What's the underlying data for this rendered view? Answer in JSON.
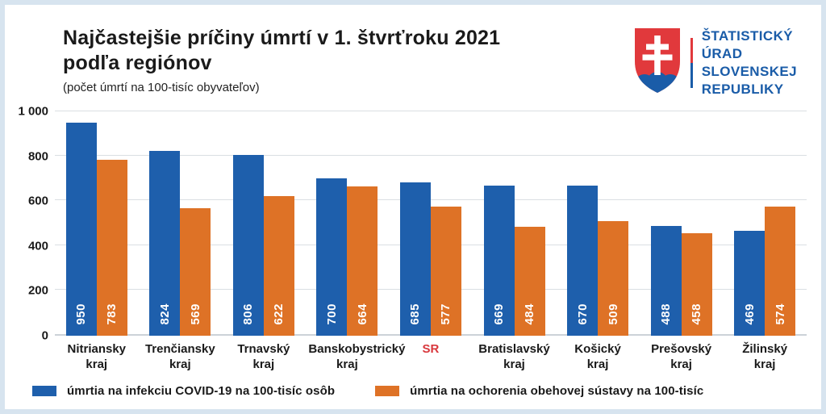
{
  "frame": {
    "border_color": "#d7e4ef",
    "background": "#ffffff"
  },
  "header": {
    "title_line1": "Najčastejšie príčiny úmrtí v 1. štvrťroku 2021",
    "title_line2": "podľa regiónov",
    "subtitle": "(počet úmrtí na 100-tisíc obyvateľov)"
  },
  "logo": {
    "lines": [
      "ŠTATISTICKÝ",
      "ÚRAD",
      "SLOVENSKEJ",
      "REPUBLIKY"
    ],
    "text_color": "#1a5ca8",
    "shield_red": "#e1393c",
    "shield_blue": "#1a5ca8"
  },
  "chart_data": {
    "type": "bar",
    "title": "Najčastejšie príčiny úmrtí v 1. štvrťroku 2021 podľa regiónov",
    "subtitle": "(počet úmrtí na 100-tisíc obyvateľov)",
    "categories": [
      "Nitriansky kraj",
      "Trenčiansky kraj",
      "Trnavský kraj",
      "Banskobystrický kraj",
      "SR",
      "Bratislavský kraj",
      "Košický kraj",
      "Prešovský kraj",
      "Žilinský kraj"
    ],
    "category_lines": [
      [
        "Nitriansky",
        "kraj"
      ],
      [
        "Trenčiansky",
        "kraj"
      ],
      [
        "Trnavský",
        "kraj"
      ],
      [
        "Banskobystrický",
        "kraj"
      ],
      [
        "SR"
      ],
      [
        "Bratislavský",
        "kraj"
      ],
      [
        "Košický",
        "kraj"
      ],
      [
        "Prešovský",
        "kraj"
      ],
      [
        "Žilinský",
        "kraj"
      ]
    ],
    "highlight_category": "SR",
    "highlight_color": "#d8373c",
    "series": [
      {
        "name": "úmrtia na infekciu COVID-19 na 100-tisíc osôb",
        "color": "#1e5fac",
        "values": [
          950,
          824,
          806,
          700,
          685,
          669,
          670,
          488,
          469
        ]
      },
      {
        "name": "úmrtia na ochorenia obehovej sústavy na 100-tisíc",
        "color": "#de7226",
        "values": [
          783,
          569,
          622,
          664,
          577,
          484,
          509,
          458,
          574
        ]
      }
    ],
    "xlabel": "",
    "ylabel": "",
    "ylim": [
      0,
      1000
    ],
    "yticks": {
      "values": [
        0,
        200,
        400,
        600,
        800,
        1000
      ],
      "labels": [
        "0",
        "200",
        "400",
        "600",
        "800",
        "1 000"
      ]
    },
    "grid": true,
    "legend_position": "bottom",
    "value_labels": "inside-bottom-rotated-white"
  }
}
